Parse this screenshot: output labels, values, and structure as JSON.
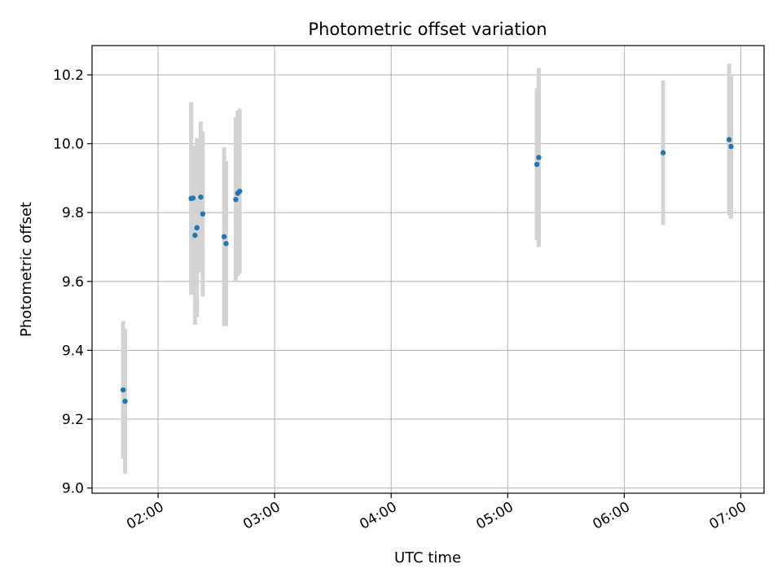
{
  "chart_data": {
    "type": "scatter",
    "title": "Photometric offset variation",
    "xlabel": "UTC time",
    "ylabel": "Photometric offset",
    "x_ticks": [
      "02:00",
      "03:00",
      "04:00",
      "05:00",
      "06:00",
      "07:00"
    ],
    "y_ticks": [
      "9.0",
      "9.2",
      "9.4",
      "9.6",
      "9.8",
      "10.0",
      "10.2"
    ],
    "xlim": [
      "01:26",
      "07:12"
    ],
    "ylim": [
      8.985,
      10.285
    ],
    "grid": true,
    "colors": {
      "point": "#1f77b4",
      "errorbar": "#d3d3d3",
      "grid": "#b0b0b0"
    },
    "series": [
      {
        "points": [
          {
            "x": "01:42",
            "y": 9.285,
            "err": 0.2
          },
          {
            "x": "01:43",
            "y": 9.252,
            "err": 0.21
          },
          {
            "x": "02:17",
            "y": 9.841,
            "err": 0.28
          },
          {
            "x": "02:18",
            "y": 9.842,
            "err": 0.15
          },
          {
            "x": "02:19",
            "y": 9.734,
            "err": 0.26
          },
          {
            "x": "02:20",
            "y": 9.756,
            "err": 0.26
          },
          {
            "x": "02:22",
            "y": 9.845,
            "err": 0.22
          },
          {
            "x": "02:23",
            "y": 9.796,
            "err": 0.24
          },
          {
            "x": "02:34",
            "y": 9.73,
            "err": 0.26
          },
          {
            "x": "02:35",
            "y": 9.71,
            "err": 0.24
          },
          {
            "x": "02:40",
            "y": 9.838,
            "err": 0.24
          },
          {
            "x": "02:41",
            "y": 9.856,
            "err": 0.24
          },
          {
            "x": "02:42",
            "y": 9.862,
            "err": 0.24
          },
          {
            "x": "05:15",
            "y": 9.94,
            "err": 0.22
          },
          {
            "x": "05:16",
            "y": 9.96,
            "err": 0.26
          },
          {
            "x": "06:20",
            "y": 9.974,
            "err": 0.21
          },
          {
            "x": "06:54",
            "y": 10.012,
            "err": 0.22
          },
          {
            "x": "06:55",
            "y": 9.992,
            "err": 0.21
          }
        ]
      }
    ]
  }
}
